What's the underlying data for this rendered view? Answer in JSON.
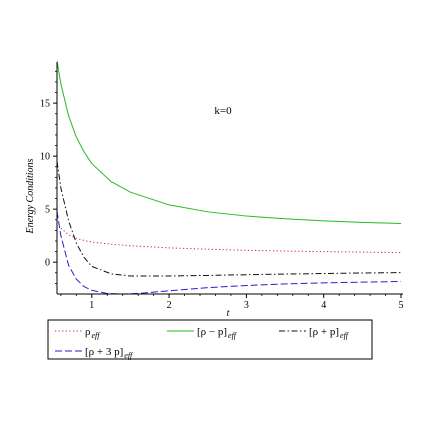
{
  "chart_data": {
    "type": "line",
    "title": "",
    "xlabel": "t",
    "ylabel": "Energy Conditions",
    "xlim": [
      0.55,
      5.0
    ],
    "ylim": [
      -3.0,
      18.5
    ],
    "xticks": [
      1,
      2,
      3,
      4,
      5
    ],
    "yticks": [
      0,
      5,
      10,
      15
    ],
    "annotation": "k=0",
    "grid": false,
    "legend_position": "bottom",
    "series": [
      {
        "name": "ρ_eff",
        "legend_main": "ρ",
        "legend_sub": "eff",
        "color": "#cc2222",
        "style": "dotted",
        "x": [
          0.6,
          0.7,
          0.8,
          0.9,
          1.0,
          1.25,
          1.5,
          2.0,
          2.5,
          3.0,
          3.5,
          4.0,
          4.5,
          5.0
        ],
        "y": [
          3.2,
          2.6,
          2.25,
          2.05,
          1.9,
          1.7,
          1.55,
          1.35,
          1.22,
          1.12,
          1.05,
          1.0,
          0.95,
          0.9
        ]
      },
      {
        "name": "[ρ − p]_eff",
        "legend_main": "[ρ − p]",
        "legend_sub": "eff",
        "color": "#22bb22",
        "style": "solid",
        "x": [
          0.55,
          0.6,
          0.7,
          0.8,
          0.9,
          1.0,
          1.25,
          1.5,
          2.0,
          2.5,
          3.0,
          3.5,
          4.0,
          4.5,
          5.0
        ],
        "y": [
          19.0,
          16.8,
          13.8,
          11.8,
          10.4,
          9.3,
          7.6,
          6.6,
          5.4,
          4.75,
          4.35,
          4.1,
          3.9,
          3.75,
          3.65
        ]
      },
      {
        "name": "[ρ + p]_eff",
        "legend_main": "[ρ + p]",
        "legend_sub": "eff",
        "color": "#111111",
        "style": "dashdot",
        "x": [
          0.55,
          0.6,
          0.7,
          0.8,
          0.9,
          1.0,
          1.25,
          1.5,
          2.0,
          2.5,
          3.0,
          3.5,
          4.0,
          4.5,
          5.0
        ],
        "y": [
          9.5,
          7.0,
          3.9,
          1.8,
          0.45,
          -0.4,
          -1.1,
          -1.3,
          -1.3,
          -1.25,
          -1.18,
          -1.12,
          -1.07,
          -1.02,
          -0.98
        ]
      },
      {
        "name": "[ρ + 3p]_eff",
        "legend_main": "[ρ + 3 p]",
        "legend_sub": "eff",
        "color": "#2222cc",
        "style": "dashed",
        "x": [
          0.55,
          0.6,
          0.7,
          0.8,
          0.9,
          1.0,
          1.2,
          1.4,
          1.6,
          2.0,
          2.5,
          3.0,
          3.5,
          4.0,
          4.5,
          5.0
        ],
        "y": [
          4.8,
          2.5,
          -0.3,
          -1.6,
          -2.3,
          -2.65,
          -2.95,
          -3.0,
          -2.95,
          -2.7,
          -2.4,
          -2.2,
          -2.05,
          -1.95,
          -1.88,
          -1.82
        ]
      }
    ]
  }
}
